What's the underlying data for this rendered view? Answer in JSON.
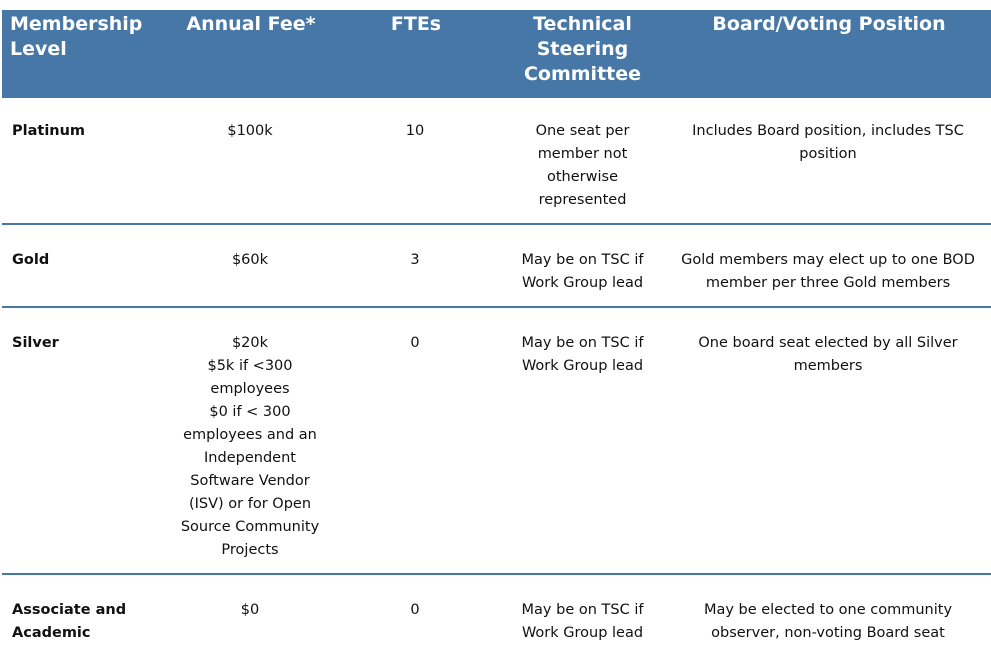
{
  "headers": [
    "Membership Level",
    "Annual Fee*",
    "FTEs",
    "Technical Steering Committee",
    "Board/Voting Position"
  ],
  "rows": [
    {
      "level": "Platinum",
      "fee": [
        "$100k"
      ],
      "ftes": "10",
      "tsc": "One seat per member not otherwise represented",
      "board": "Includes Board position, includes TSC position"
    },
    {
      "level": "Gold",
      "fee": [
        "$60k"
      ],
      "ftes": "3",
      "tsc": "May be on TSC if Work Group lead",
      "board": "Gold members may elect up to one BOD member per three Gold members"
    },
    {
      "level": "Silver",
      "fee": [
        "$20k",
        "$5k if <300 employees",
        "$0 if < 300 employees and an Independent Software Vendor (ISV) or for Open Source Community Projects"
      ],
      "ftes": "0",
      "tsc": "May be on TSC if Work Group lead",
      "board": "One board seat elected by all Silver members"
    },
    {
      "level": "Associate and Academic",
      "fee": [
        "$0"
      ],
      "ftes": "0",
      "tsc": "May be on TSC if Work Group lead",
      "board": "May be elected to one community observer, non-voting Board seat"
    }
  ],
  "colors": {
    "header_bg": "#4677a6",
    "rule": "#4677a6"
  }
}
